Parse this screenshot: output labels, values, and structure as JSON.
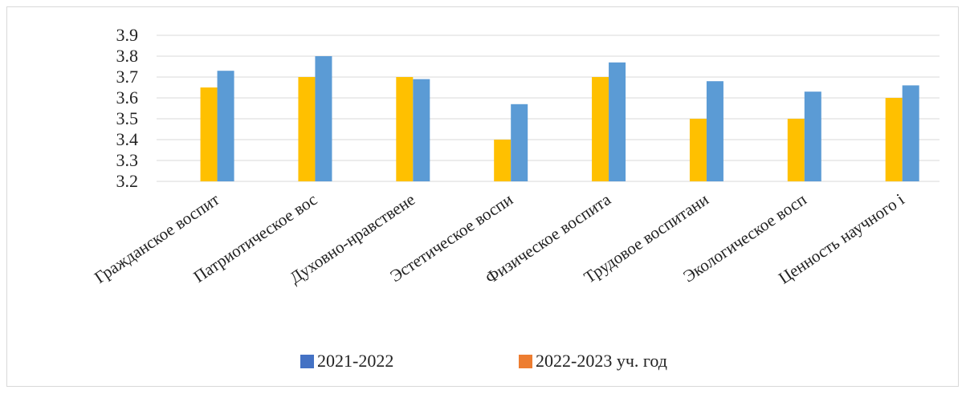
{
  "chart_data": {
    "type": "bar",
    "categories": [
      "Гражданское воспит",
      "Патриотическое вос",
      "Духовно-нравствене",
      "Эстетическое воспи",
      "Физическое воспита",
      "Трудовое воспитани",
      "Экологическое восп",
      "Ценность научного і"
    ],
    "ylim": [
      3.2,
      3.9
    ],
    "yticks": [
      "3.2",
      "3.3",
      "3.4",
      "3.5",
      "3.6",
      "3.7",
      "3.8",
      "3.9"
    ],
    "grid": true,
    "legend_position": "bottom",
    "series": [
      {
        "name": "2022-2023 уч. год",
        "legend_color": "#ED7D31",
        "bar_color": "#FFC000",
        "values": [
          3.65,
          3.7,
          3.7,
          3.4,
          3.7,
          3.5,
          3.5,
          3.6
        ]
      },
      {
        "name": "2021-2022",
        "legend_color": "#4472C4",
        "bar_color": "#5B9BD5",
        "values": [
          3.73,
          3.8,
          3.69,
          3.57,
          3.77,
          3.68,
          3.63,
          3.66
        ]
      }
    ],
    "legend_order": [
      1,
      0
    ]
  }
}
